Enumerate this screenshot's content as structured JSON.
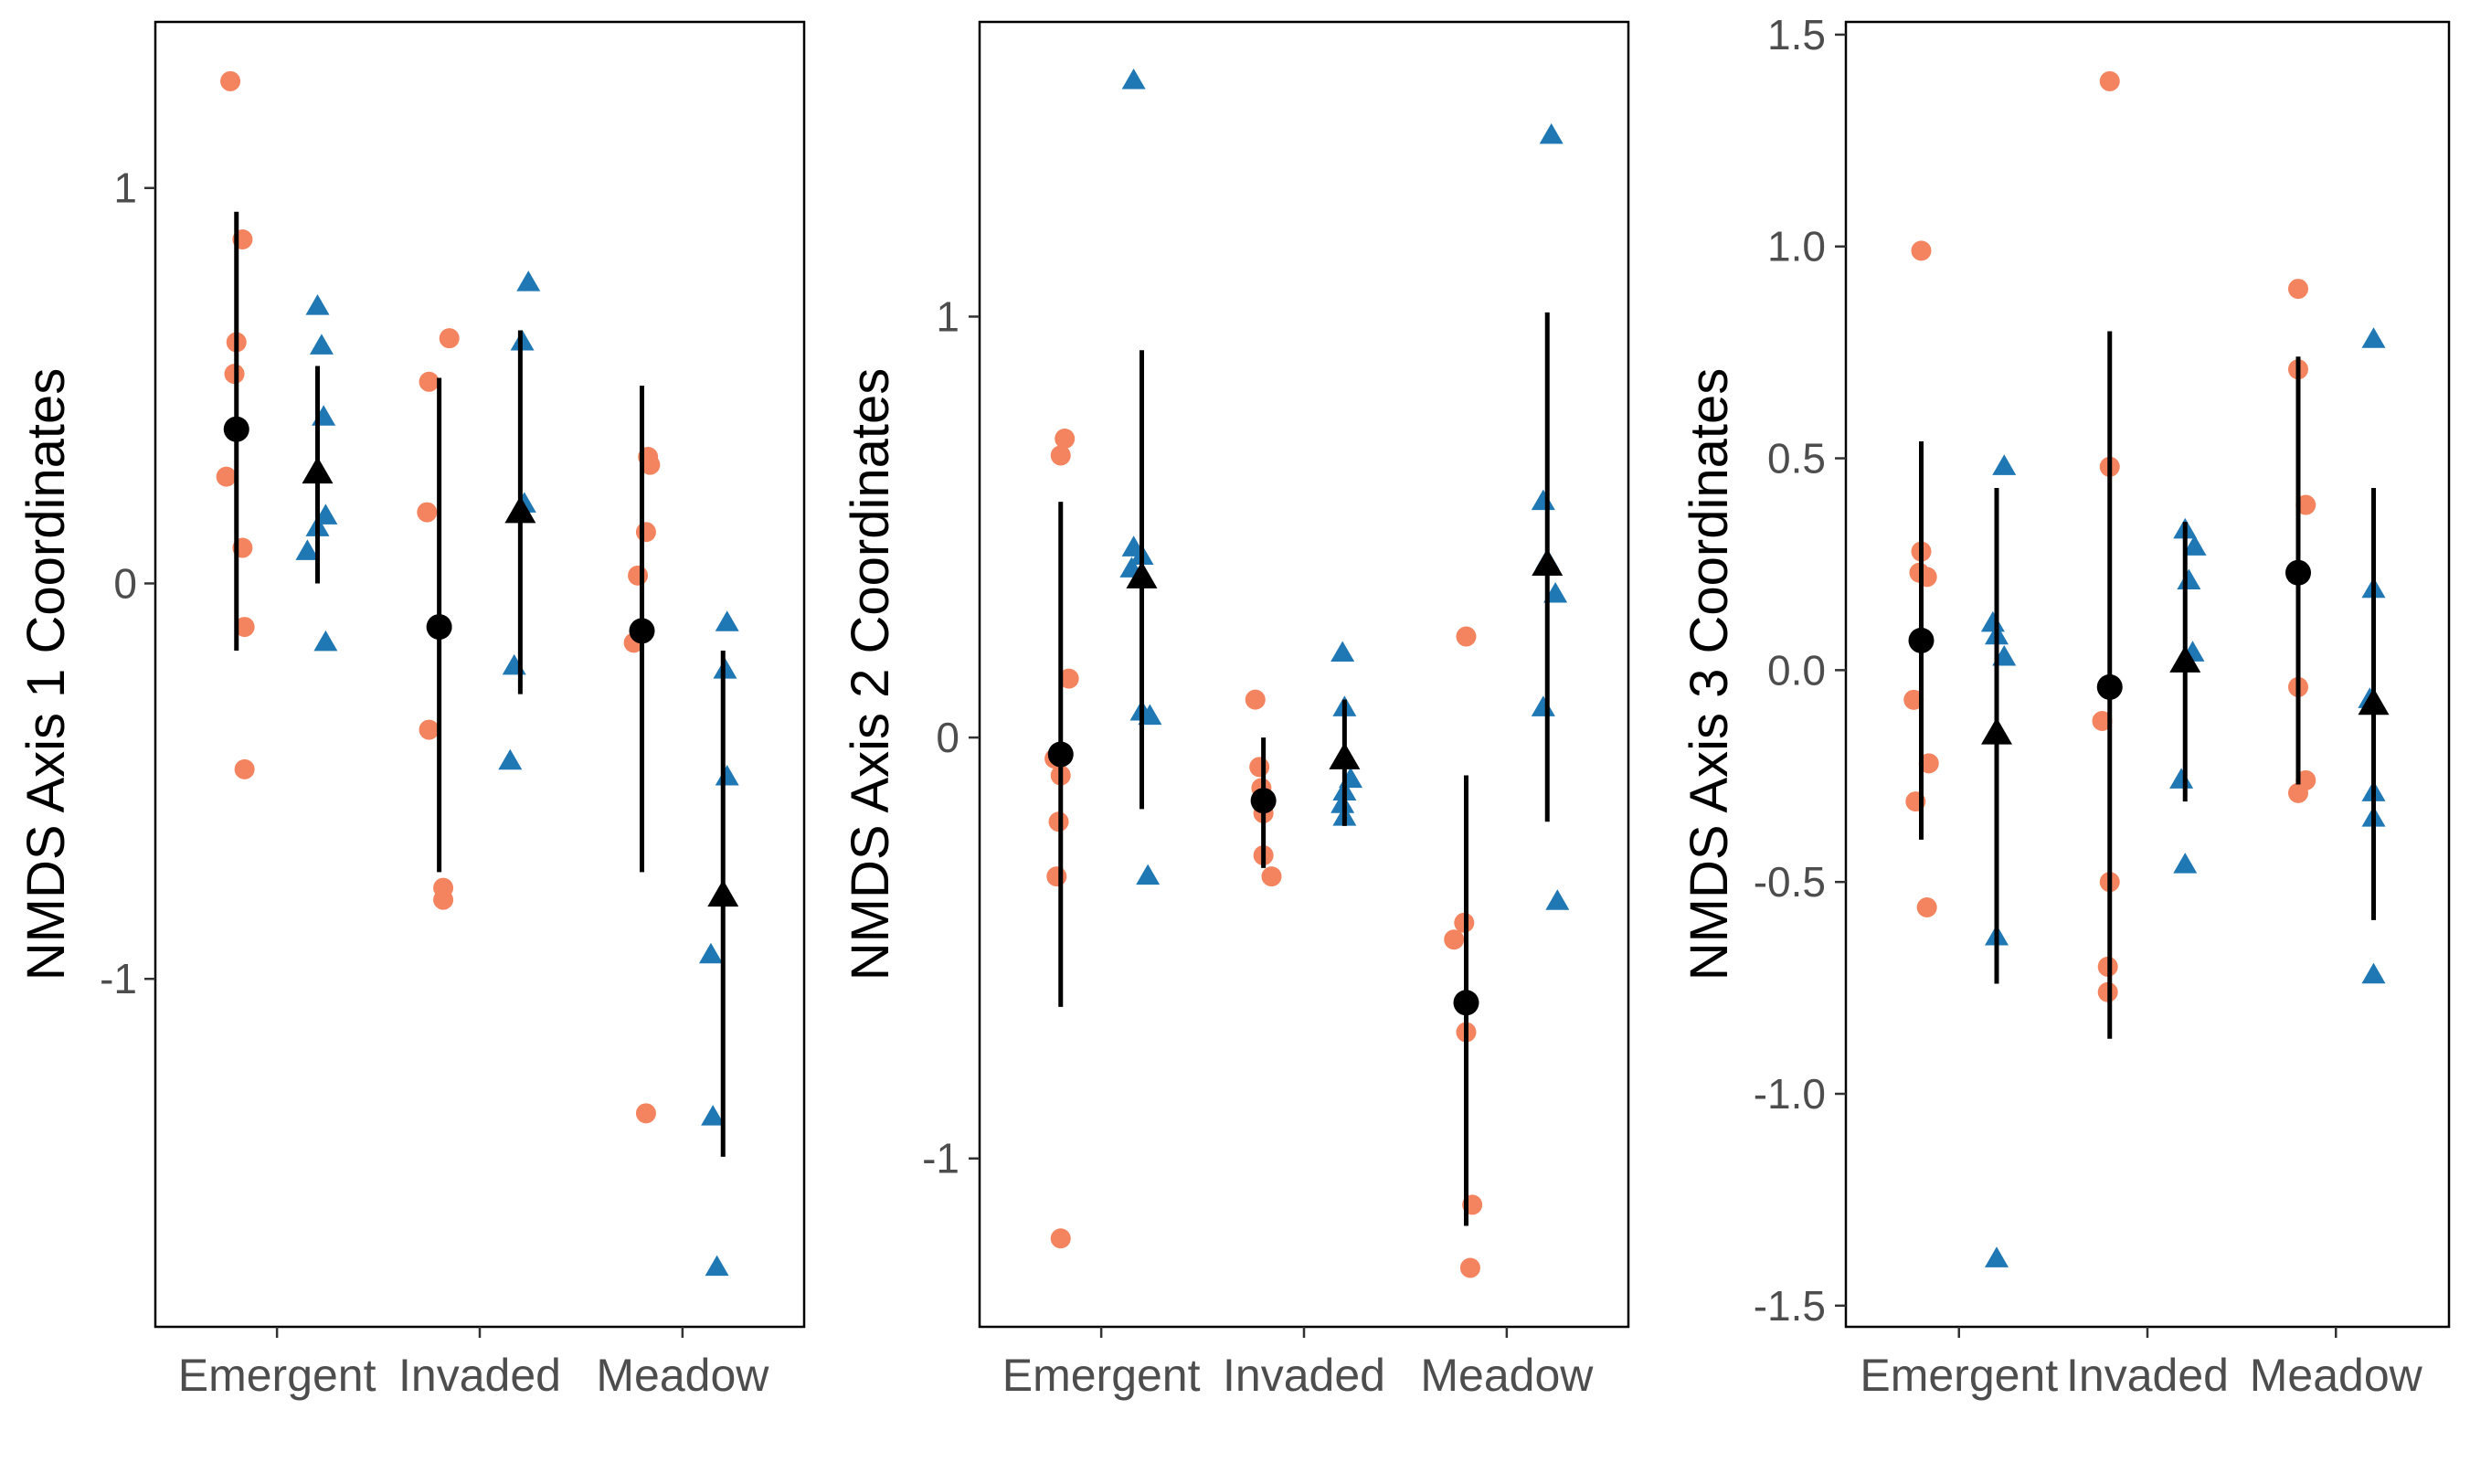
{
  "chart_data": [
    {
      "type": "scatter",
      "ylabel": "NMDS Axis 1 Coordinates",
      "categories": [
        "Emergent",
        "Invaded",
        "Meadow"
      ],
      "yticks": [
        -1,
        0,
        1
      ],
      "ytick_labels": [
        "-1",
        "0",
        "1"
      ],
      "ylim": [
        -1.88,
        1.42
      ],
      "grid": false,
      "legend": "none",
      "series": [
        {
          "marker": "circle",
          "color": "#F4845F",
          "offset": -0.2,
          "points": [
            {
              "cat": 0,
              "dx": -0.03,
              "y": 1.27
            },
            {
              "cat": 0,
              "dx": 0.03,
              "y": 0.87
            },
            {
              "cat": 0,
              "dx": 0.0,
              "y": 0.61
            },
            {
              "cat": 0,
              "dx": -0.01,
              "y": 0.53
            },
            {
              "cat": 0,
              "dx": -0.05,
              "y": 0.27
            },
            {
              "cat": 0,
              "dx": 0.03,
              "y": 0.09
            },
            {
              "cat": 0,
              "dx": 0.04,
              "y": -0.11
            },
            {
              "cat": 0,
              "dx": 0.04,
              "y": -0.47
            },
            {
              "cat": 1,
              "dx": 0.05,
              "y": 0.62
            },
            {
              "cat": 1,
              "dx": -0.05,
              "y": 0.51
            },
            {
              "cat": 1,
              "dx": -0.06,
              "y": 0.18
            },
            {
              "cat": 1,
              "dx": -0.05,
              "y": -0.37
            },
            {
              "cat": 1,
              "dx": 0.02,
              "y": -0.77
            },
            {
              "cat": 1,
              "dx": 0.02,
              "y": -0.8
            },
            {
              "cat": 2,
              "dx": 0.03,
              "y": 0.32
            },
            {
              "cat": 2,
              "dx": 0.04,
              "y": 0.3
            },
            {
              "cat": 2,
              "dx": 0.02,
              "y": 0.13
            },
            {
              "cat": 2,
              "dx": -0.02,
              "y": 0.02
            },
            {
              "cat": 2,
              "dx": -0.04,
              "y": -0.15
            },
            {
              "cat": 2,
              "dx": 0.02,
              "y": -1.34
            }
          ],
          "summary": [
            {
              "cat": 0,
              "mean": 0.39,
              "lo": -0.17,
              "hi": 0.94
            },
            {
              "cat": 1,
              "mean": -0.11,
              "lo": -0.73,
              "hi": 0.52
            },
            {
              "cat": 2,
              "mean": -0.12,
              "lo": -0.73,
              "hi": 0.5
            }
          ]
        },
        {
          "marker": "triangle",
          "color": "#1F77B4",
          "offset": 0.2,
          "points": [
            {
              "cat": 0,
              "dx": 0.0,
              "y": 0.7
            },
            {
              "cat": 0,
              "dx": 0.02,
              "y": 0.6
            },
            {
              "cat": 0,
              "dx": 0.03,
              "y": 0.42
            },
            {
              "cat": 0,
              "dx": 0.04,
              "y": 0.17
            },
            {
              "cat": 0,
              "dx": 0.0,
              "y": 0.14
            },
            {
              "cat": 0,
              "dx": -0.05,
              "y": 0.08
            },
            {
              "cat": 0,
              "dx": 0.04,
              "y": -0.15
            },
            {
              "cat": 1,
              "dx": 0.04,
              "y": 0.76
            },
            {
              "cat": 1,
              "dx": 0.01,
              "y": 0.61
            },
            {
              "cat": 1,
              "dx": 0.02,
              "y": 0.2
            },
            {
              "cat": 1,
              "dx": -0.01,
              "y": 0.18
            },
            {
              "cat": 1,
              "dx": -0.03,
              "y": -0.21
            },
            {
              "cat": 1,
              "dx": -0.05,
              "y": -0.45
            },
            {
              "cat": 2,
              "dx": 0.02,
              "y": -0.1
            },
            {
              "cat": 2,
              "dx": 0.01,
              "y": -0.22
            },
            {
              "cat": 2,
              "dx": 0.02,
              "y": -0.49
            },
            {
              "cat": 2,
              "dx": -0.06,
              "y": -0.94
            },
            {
              "cat": 2,
              "dx": -0.05,
              "y": -1.35
            },
            {
              "cat": 2,
              "dx": -0.03,
              "y": -1.73
            }
          ],
          "summary": [
            {
              "cat": 0,
              "mean": 0.28,
              "lo": 0.0,
              "hi": 0.55
            },
            {
              "cat": 1,
              "mean": 0.18,
              "lo": -0.28,
              "hi": 0.64
            },
            {
              "cat": 2,
              "mean": -0.79,
              "lo": -1.45,
              "hi": -0.17
            }
          ]
        }
      ]
    },
    {
      "type": "scatter",
      "ylabel": "NMDS Axis 2 Coordinates",
      "categories": [
        "Emergent",
        "Invaded",
        "Meadow"
      ],
      "yticks": [
        -1,
        0,
        1
      ],
      "ytick_labels": [
        "-1",
        "0",
        "1"
      ],
      "ylim": [
        -1.4,
        1.7
      ],
      "grid": false,
      "legend": "none",
      "series": [
        {
          "marker": "circle",
          "color": "#F4845F",
          "offset": -0.2,
          "points": [
            {
              "cat": 0,
              "dx": 0.02,
              "y": 0.71
            },
            {
              "cat": 0,
              "dx": 0.0,
              "y": 0.67
            },
            {
              "cat": 0,
              "dx": 0.04,
              "y": 0.14
            },
            {
              "cat": 0,
              "dx": -0.03,
              "y": -0.05
            },
            {
              "cat": 0,
              "dx": 0.0,
              "y": -0.09
            },
            {
              "cat": 0,
              "dx": -0.01,
              "y": -0.2
            },
            {
              "cat": 0,
              "dx": -0.02,
              "y": -0.33
            },
            {
              "cat": 0,
              "dx": 0.0,
              "y": -1.19
            },
            {
              "cat": 1,
              "dx": -0.04,
              "y": 0.09
            },
            {
              "cat": 1,
              "dx": -0.02,
              "y": -0.07
            },
            {
              "cat": 1,
              "dx": -0.01,
              "y": -0.12
            },
            {
              "cat": 1,
              "dx": 0.0,
              "y": -0.18
            },
            {
              "cat": 1,
              "dx": 0.0,
              "y": -0.28
            },
            {
              "cat": 1,
              "dx": 0.04,
              "y": -0.33
            },
            {
              "cat": 2,
              "dx": 0.0,
              "y": 0.24
            },
            {
              "cat": 2,
              "dx": -0.06,
              "y": -0.48
            },
            {
              "cat": 2,
              "dx": -0.01,
              "y": -0.44
            },
            {
              "cat": 2,
              "dx": 0.0,
              "y": -0.7
            },
            {
              "cat": 2,
              "dx": 0.03,
              "y": -1.11
            },
            {
              "cat": 2,
              "dx": 0.02,
              "y": -1.26
            }
          ],
          "summary": [
            {
              "cat": 0,
              "mean": -0.04,
              "lo": -0.64,
              "hi": 0.56
            },
            {
              "cat": 1,
              "mean": -0.15,
              "lo": -0.31,
              "hi": 0.0
            },
            {
              "cat": 2,
              "mean": -0.63,
              "lo": -1.16,
              "hi": -0.09
            }
          ]
        },
        {
          "marker": "triangle",
          "color": "#1F77B4",
          "offset": 0.2,
          "points": [
            {
              "cat": 0,
              "dx": -0.04,
              "y": 1.56
            },
            {
              "cat": 0,
              "dx": -0.04,
              "y": 0.45
            },
            {
              "cat": 0,
              "dx": 0.0,
              "y": 0.43
            },
            {
              "cat": 0,
              "dx": -0.05,
              "y": 0.4
            },
            {
              "cat": 0,
              "dx": 0.0,
              "y": 0.06
            },
            {
              "cat": 0,
              "dx": 0.04,
              "y": 0.05
            },
            {
              "cat": 0,
              "dx": 0.03,
              "y": -0.33
            },
            {
              "cat": 1,
              "dx": -0.01,
              "y": 0.2
            },
            {
              "cat": 1,
              "dx": 0.0,
              "y": 0.07
            },
            {
              "cat": 1,
              "dx": 0.03,
              "y": -0.1
            },
            {
              "cat": 1,
              "dx": 0.0,
              "y": -0.13
            },
            {
              "cat": 1,
              "dx": -0.01,
              "y": -0.16
            },
            {
              "cat": 1,
              "dx": 0.0,
              "y": -0.19
            },
            {
              "cat": 2,
              "dx": 0.02,
              "y": 1.43
            },
            {
              "cat": 2,
              "dx": -0.02,
              "y": 0.56
            },
            {
              "cat": 2,
              "dx": 0.0,
              "y": 0.42
            },
            {
              "cat": 2,
              "dx": 0.04,
              "y": 0.34
            },
            {
              "cat": 2,
              "dx": -0.02,
              "y": 0.07
            },
            {
              "cat": 2,
              "dx": 0.05,
              "y": -0.39
            }
          ],
          "summary": [
            {
              "cat": 0,
              "mean": 0.38,
              "lo": -0.17,
              "hi": 0.92
            },
            {
              "cat": 1,
              "mean": -0.05,
              "lo": -0.21,
              "hi": 0.09
            },
            {
              "cat": 2,
              "mean": 0.41,
              "lo": -0.2,
              "hi": 1.01
            }
          ]
        }
      ]
    },
    {
      "type": "scatter",
      "ylabel": "NMDS Axis 3 Coordinates",
      "categories": [
        "Emergent",
        "Invaded",
        "Meadow"
      ],
      "yticks": [
        -1.5,
        -1.0,
        -0.5,
        0.0,
        0.5,
        1.0,
        1.5
      ],
      "ytick_labels": [
        "-1.5",
        "-1.0",
        "-0.5",
        "0.0",
        "0.5",
        "1.0",
        "1.5"
      ],
      "ylim": [
        -1.55,
        1.53
      ],
      "grid": false,
      "legend": "none",
      "series": [
        {
          "marker": "circle",
          "color": "#F4845F",
          "offset": -0.2,
          "points": [
            {
              "cat": 0,
              "dx": 0.0,
              "y": 0.99
            },
            {
              "cat": 0,
              "dx": 0.0,
              "y": 0.28
            },
            {
              "cat": 0,
              "dx": -0.01,
              "y": 0.23
            },
            {
              "cat": 0,
              "dx": 0.03,
              "y": 0.22
            },
            {
              "cat": 0,
              "dx": -0.04,
              "y": -0.07
            },
            {
              "cat": 0,
              "dx": 0.04,
              "y": -0.22
            },
            {
              "cat": 0,
              "dx": -0.03,
              "y": -0.31
            },
            {
              "cat": 0,
              "dx": 0.03,
              "y": -0.56
            },
            {
              "cat": 1,
              "dx": 0.0,
              "y": 1.39
            },
            {
              "cat": 1,
              "dx": 0.0,
              "y": 0.48
            },
            {
              "cat": 1,
              "dx": -0.04,
              "y": -0.12
            },
            {
              "cat": 1,
              "dx": 0.0,
              "y": -0.5
            },
            {
              "cat": 1,
              "dx": -0.01,
              "y": -0.7
            },
            {
              "cat": 1,
              "dx": -0.01,
              "y": -0.76
            },
            {
              "cat": 2,
              "dx": 0.0,
              "y": 0.9
            },
            {
              "cat": 2,
              "dx": 0.0,
              "y": 0.71
            },
            {
              "cat": 2,
              "dx": 0.04,
              "y": 0.39
            },
            {
              "cat": 2,
              "dx": 0.0,
              "y": -0.04
            },
            {
              "cat": 2,
              "dx": 0.04,
              "y": -0.26
            },
            {
              "cat": 2,
              "dx": 0.0,
              "y": -0.29
            }
          ],
          "summary": [
            {
              "cat": 0,
              "mean": 0.07,
              "lo": -0.4,
              "hi": 0.54
            },
            {
              "cat": 1,
              "mean": -0.04,
              "lo": -0.87,
              "hi": 0.8
            },
            {
              "cat": 2,
              "mean": 0.23,
              "lo": -0.27,
              "hi": 0.74
            }
          ]
        },
        {
          "marker": "triangle",
          "color": "#1F77B4",
          "offset": 0.2,
          "points": [
            {
              "cat": 0,
              "dx": 0.04,
              "y": 0.48
            },
            {
              "cat": 0,
              "dx": -0.02,
              "y": 0.11
            },
            {
              "cat": 0,
              "dx": 0.0,
              "y": 0.08
            },
            {
              "cat": 0,
              "dx": 0.04,
              "y": 0.03
            },
            {
              "cat": 0,
              "dx": 0.0,
              "y": -0.63
            },
            {
              "cat": 0,
              "dx": 0.0,
              "y": -1.39
            },
            {
              "cat": 1,
              "dx": 0.0,
              "y": 0.33
            },
            {
              "cat": 1,
              "dx": 0.05,
              "y": 0.29
            },
            {
              "cat": 1,
              "dx": 0.02,
              "y": 0.21
            },
            {
              "cat": 1,
              "dx": 0.04,
              "y": 0.04
            },
            {
              "cat": 1,
              "dx": -0.02,
              "y": -0.26
            },
            {
              "cat": 1,
              "dx": 0.0,
              "y": -0.46
            },
            {
              "cat": 2,
              "dx": 0.0,
              "y": 0.78
            },
            {
              "cat": 2,
              "dx": 0.0,
              "y": 0.19
            },
            {
              "cat": 2,
              "dx": -0.02,
              "y": -0.07
            },
            {
              "cat": 2,
              "dx": 0.0,
              "y": -0.29
            },
            {
              "cat": 2,
              "dx": 0.0,
              "y": -0.35
            },
            {
              "cat": 2,
              "dx": 0.0,
              "y": -0.72
            }
          ],
          "summary": [
            {
              "cat": 0,
              "mean": -0.15,
              "lo": -0.74,
              "hi": 0.43
            },
            {
              "cat": 1,
              "mean": 0.02,
              "lo": -0.31,
              "hi": 0.35
            },
            {
              "cat": 2,
              "mean": -0.08,
              "lo": -0.59,
              "hi": 0.43
            }
          ]
        }
      ]
    }
  ]
}
